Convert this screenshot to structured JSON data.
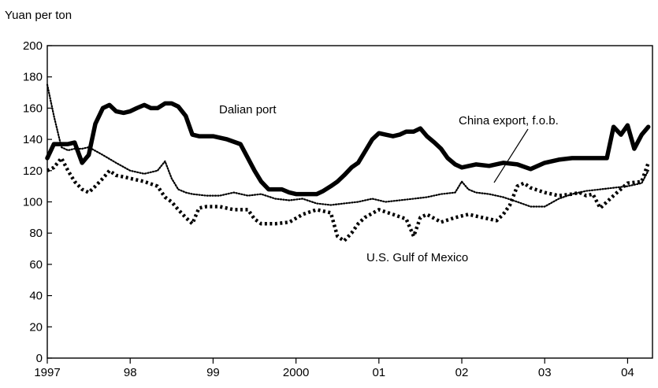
{
  "chart_data": {
    "type": "line",
    "title": "",
    "ylabel": "Yuan per ton",
    "xlabel": "",
    "ylim": [
      0,
      200
    ],
    "xlim": [
      1997.0,
      2004.3
    ],
    "yticks": [
      0,
      20,
      40,
      60,
      80,
      100,
      120,
      140,
      160,
      180,
      200
    ],
    "xticks": [
      {
        "value": 1997,
        "label": "1997"
      },
      {
        "value": 1998,
        "label": "98"
      },
      {
        "value": 1999,
        "label": "99"
      },
      {
        "value": 2000,
        "label": "2000"
      },
      {
        "value": 2001,
        "label": "01"
      },
      {
        "value": 2002,
        "label": "02"
      },
      {
        "value": 2003,
        "label": "03"
      },
      {
        "value": 2004,
        "label": "04"
      }
    ],
    "grid": false,
    "series": [
      {
        "name": "Dalian port",
        "style": "thick-solid",
        "color": "#000000",
        "x": [
          1997.0,
          1997.08,
          1997.17,
          1997.25,
          1997.33,
          1997.42,
          1997.5,
          1997.58,
          1997.67,
          1997.75,
          1997.83,
          1997.92,
          1998.0,
          1998.08,
          1998.17,
          1998.25,
          1998.33,
          1998.42,
          1998.5,
          1998.58,
          1998.67,
          1998.75,
          1998.83,
          1998.92,
          1999.0,
          1999.17,
          1999.33,
          1999.42,
          1999.5,
          1999.58,
          1999.67,
          1999.75,
          1999.83,
          1999.92,
          2000.0,
          2000.08,
          2000.17,
          2000.25,
          2000.33,
          2000.42,
          2000.5,
          2000.58,
          2000.67,
          2000.75,
          2000.83,
          2000.92,
          2001.0,
          2001.08,
          2001.17,
          2001.25,
          2001.33,
          2001.42,
          2001.5,
          2001.58,
          2001.67,
          2001.75,
          2001.83,
          2001.92,
          2002.0,
          2002.17,
          2002.33,
          2002.5,
          2002.67,
          2002.83,
          2003.0,
          2003.17,
          2003.33,
          2003.5,
          2003.67,
          2003.75,
          2003.83,
          2003.92,
          2004.0,
          2004.08,
          2004.17,
          2004.25
        ],
        "values": [
          128,
          137,
          137,
          137,
          138,
          125,
          130,
          150,
          160,
          162,
          158,
          157,
          158,
          160,
          162,
          160,
          160,
          163,
          163,
          161,
          155,
          143,
          142,
          142,
          142,
          140,
          137,
          128,
          120,
          113,
          108,
          108,
          108,
          106,
          105,
          105,
          105,
          105,
          107,
          110,
          113,
          117,
          122,
          125,
          132,
          140,
          144,
          143,
          142,
          143,
          145,
          145,
          147,
          142,
          138,
          134,
          128,
          124,
          122,
          124,
          123,
          125,
          124,
          121,
          125,
          127,
          128,
          128,
          128,
          128,
          148,
          143,
          149,
          134,
          143,
          148
        ]
      },
      {
        "name": "China export, f.o.b.",
        "style": "dotted-fine",
        "color": "#000000",
        "x": [
          1997.0,
          1997.08,
          1997.17,
          1997.25,
          1997.33,
          1997.42,
          1997.5,
          1997.67,
          1997.83,
          1998.0,
          1998.17,
          1998.33,
          1998.42,
          1998.5,
          1998.58,
          1998.67,
          1998.75,
          1998.92,
          1999.08,
          1999.25,
          1999.42,
          1999.58,
          1999.75,
          1999.92,
          2000.08,
          2000.25,
          2000.42,
          2000.58,
          2000.75,
          2000.92,
          2001.08,
          2001.25,
          2001.42,
          2001.58,
          2001.75,
          2001.92,
          2002.0,
          2002.08,
          2002.17,
          2002.33,
          2002.5,
          2002.67,
          2002.83,
          2003.0,
          2003.17,
          2003.33,
          2003.5,
          2003.67,
          2003.83,
          2004.0,
          2004.17,
          2004.25
        ],
        "values": [
          175,
          155,
          135,
          133,
          134,
          134,
          135,
          130,
          125,
          120,
          118,
          120,
          126,
          115,
          108,
          106,
          105,
          104,
          104,
          106,
          104,
          105,
          102,
          101,
          102,
          99,
          98,
          99,
          100,
          102,
          100,
          101,
          102,
          103,
          105,
          106,
          113,
          108,
          106,
          105,
          103,
          100,
          97,
          97,
          102,
          105,
          107,
          108,
          109,
          110,
          112,
          120
        ]
      },
      {
        "name": "U.S. Gulf of Mexico",
        "style": "thick-dotted",
        "color": "#000000",
        "x": [
          1997.0,
          1997.08,
          1997.17,
          1997.25,
          1997.33,
          1997.42,
          1997.5,
          1997.58,
          1997.67,
          1997.75,
          1997.83,
          1997.92,
          1998.0,
          1998.17,
          1998.33,
          1998.42,
          1998.5,
          1998.58,
          1998.67,
          1998.75,
          1998.83,
          1998.92,
          1999.08,
          1999.25,
          1999.42,
          1999.5,
          1999.58,
          1999.75,
          1999.92,
          2000.08,
          2000.25,
          2000.42,
          2000.5,
          2000.58,
          2000.67,
          2000.75,
          2000.83,
          2001.0,
          2001.17,
          2001.33,
          2001.42,
          2001.5,
          2001.58,
          2001.75,
          2001.92,
          2002.08,
          2002.25,
          2002.42,
          2002.5,
          2002.58,
          2002.67,
          2002.75,
          2002.83,
          2003.0,
          2003.17,
          2003.33,
          2003.42,
          2003.5,
          2003.58,
          2003.67,
          2003.83,
          2004.0,
          2004.17,
          2004.25
        ],
        "values": [
          120,
          122,
          128,
          120,
          113,
          108,
          106,
          110,
          115,
          120,
          117,
          116,
          115,
          113,
          110,
          103,
          100,
          95,
          90,
          86,
          96,
          97,
          97,
          95,
          95,
          89,
          86,
          86,
          87,
          92,
          95,
          93,
          78,
          75,
          80,
          86,
          90,
          95,
          92,
          89,
          78,
          90,
          92,
          87,
          90,
          92,
          90,
          88,
          92,
          98,
          110,
          112,
          109,
          106,
          104,
          105,
          106,
          104,
          105,
          96,
          104,
          112,
          113,
          125
        ]
      }
    ],
    "annotations": [
      {
        "text": "Dalian port",
        "series": "Dalian port"
      },
      {
        "text": "China export, f.o.b.",
        "series": "China export, f.o.b."
      },
      {
        "text": "U.S. Gulf of Mexico",
        "series": "U.S. Gulf of Mexico"
      }
    ]
  }
}
